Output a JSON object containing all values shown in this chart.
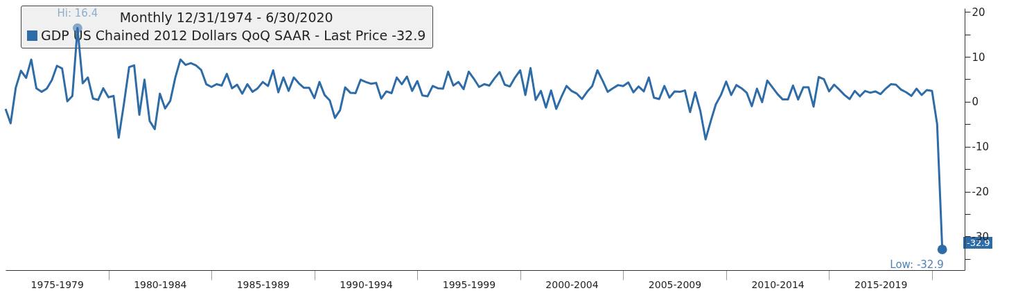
{
  "chart_data": {
    "type": "line",
    "title": "Monthly 12/31/1974 - 6/30/2020",
    "legend": "top left",
    "x": [
      "1974-12-31",
      "1975-03-31",
      "1975-06-30",
      "1975-09-30",
      "1975-12-31",
      "1976-03-31",
      "1976-06-30",
      "1976-09-30",
      "1976-12-31",
      "1977-03-31",
      "1977-06-30",
      "1977-09-30",
      "1977-12-31",
      "1978-03-31",
      "1978-06-30",
      "1978-09-30",
      "1978-12-31",
      "1979-03-31",
      "1979-06-30",
      "1979-09-30",
      "1979-12-31",
      "1980-03-31",
      "1980-06-30",
      "1980-09-30",
      "1980-12-31",
      "1981-03-31",
      "1981-06-30",
      "1981-09-30",
      "1981-12-31",
      "1982-03-31",
      "1982-06-30",
      "1982-09-30",
      "1982-12-31",
      "1983-03-31",
      "1983-06-30",
      "1983-09-30",
      "1983-12-31",
      "1984-03-31",
      "1984-06-30",
      "1984-09-30",
      "1984-12-31",
      "1985-03-31",
      "1985-06-30",
      "1985-09-30",
      "1985-12-31",
      "1986-03-31",
      "1986-06-30",
      "1986-09-30",
      "1986-12-31",
      "1987-03-31",
      "1987-06-30",
      "1987-09-30",
      "1987-12-31",
      "1988-03-31",
      "1988-06-30",
      "1988-09-30",
      "1988-12-31",
      "1989-03-31",
      "1989-06-30",
      "1989-09-30",
      "1989-12-31",
      "1990-03-31",
      "1990-06-30",
      "1990-09-30",
      "1990-12-31",
      "1991-03-31",
      "1991-06-30",
      "1991-09-30",
      "1991-12-31",
      "1992-03-31",
      "1992-06-30",
      "1992-09-30",
      "1992-12-31",
      "1993-03-31",
      "1993-06-30",
      "1993-09-30",
      "1993-12-31",
      "1994-03-31",
      "1994-06-30",
      "1994-09-30",
      "1994-12-31",
      "1995-03-31",
      "1995-06-30",
      "1995-09-30",
      "1995-12-31",
      "1996-03-31",
      "1996-06-30",
      "1996-09-30",
      "1996-12-31",
      "1997-03-31",
      "1997-06-30",
      "1997-09-30",
      "1997-12-31",
      "1998-03-31",
      "1998-06-30",
      "1998-09-30",
      "1998-12-31",
      "1999-03-31",
      "1999-06-30",
      "1999-09-30",
      "1999-12-31",
      "2000-03-31",
      "2000-06-30",
      "2000-09-30",
      "2000-12-31",
      "2001-03-31",
      "2001-06-30",
      "2001-09-30",
      "2001-12-31",
      "2002-03-31",
      "2002-06-30",
      "2002-09-30",
      "2002-12-31",
      "2003-03-31",
      "2003-06-30",
      "2003-09-30",
      "2003-12-31",
      "2004-03-31",
      "2004-06-30",
      "2004-09-30",
      "2004-12-31",
      "2005-03-31",
      "2005-06-30",
      "2005-09-30",
      "2005-12-31",
      "2006-03-31",
      "2006-06-30",
      "2006-09-30",
      "2006-12-31",
      "2007-03-31",
      "2007-06-30",
      "2007-09-30",
      "2007-12-31",
      "2008-03-31",
      "2008-06-30",
      "2008-09-30",
      "2008-12-31",
      "2009-03-31",
      "2009-06-30",
      "2009-09-30",
      "2009-12-31",
      "2010-03-31",
      "2010-06-30",
      "2010-09-30",
      "2010-12-31",
      "2011-03-31",
      "2011-06-30",
      "2011-09-30",
      "2011-12-31",
      "2012-03-31",
      "2012-06-30",
      "2012-09-30",
      "2012-12-31",
      "2013-03-31",
      "2013-06-30",
      "2013-09-30",
      "2013-12-31",
      "2014-03-31",
      "2014-06-30",
      "2014-09-30",
      "2014-12-31",
      "2015-03-31",
      "2015-06-30",
      "2015-09-30",
      "2015-12-31",
      "2016-03-31",
      "2016-06-30",
      "2016-09-30",
      "2016-12-31",
      "2017-03-31",
      "2017-06-30",
      "2017-09-30",
      "2017-12-31",
      "2018-03-31",
      "2018-06-30",
      "2018-09-30",
      "2018-12-31",
      "2019-03-31",
      "2019-06-30",
      "2019-09-30",
      "2019-12-31",
      "2020-03-31",
      "2020-06-30"
    ],
    "series": [
      {
        "name": "GDP US Chained 2012 Dollars QoQ SAAR - Last Price -32.9",
        "color": "#2e6ca8",
        "values": [
          -1.6,
          -4.8,
          3.1,
          6.9,
          5.3,
          9.4,
          3.0,
          2.2,
          2.9,
          4.8,
          8.0,
          7.4,
          0.1,
          1.3,
          16.4,
          4.1,
          5.4,
          0.7,
          0.4,
          3.0,
          1.0,
          1.3,
          -8.0,
          -0.5,
          7.7,
          8.1,
          -2.9,
          4.9,
          -4.3,
          -6.1,
          1.8,
          -1.5,
          0.2,
          5.4,
          9.4,
          8.2,
          8.6,
          8.1,
          7.1,
          3.9,
          3.3,
          3.9,
          3.6,
          6.2,
          3.0,
          3.8,
          1.8,
          3.9,
          2.2,
          3.0,
          4.4,
          3.5,
          7.0,
          2.1,
          5.4,
          2.4,
          5.4,
          4.1,
          3.1,
          3.1,
          0.8,
          4.4,
          1.5,
          0.3,
          -3.6,
          -1.9,
          3.2,
          2.0,
          1.9,
          4.9,
          4.4,
          4.0,
          4.2,
          0.7,
          2.3,
          1.9,
          5.4,
          3.9,
          5.6,
          2.4,
          4.6,
          1.4,
          1.2,
          3.5,
          3.0,
          2.9,
          6.7,
          3.6,
          4.4,
          2.8,
          6.7,
          5.1,
          3.3,
          3.9,
          3.6,
          5.2,
          6.6,
          3.8,
          3.4,
          5.4,
          7.0,
          1.5,
          7.5,
          0.4,
          2.4,
          -1.3,
          2.5,
          -1.6,
          1.1,
          3.5,
          2.4,
          1.8,
          0.6,
          2.2,
          3.5,
          7.0,
          4.7,
          2.2,
          3.0,
          3.7,
          3.5,
          4.3,
          2.1,
          3.4,
          2.3,
          5.4,
          0.9,
          0.6,
          3.5,
          0.9,
          2.3,
          2.2,
          2.5,
          -2.3,
          2.1,
          -2.1,
          -8.4,
          -4.4,
          -0.6,
          1.5,
          4.5,
          1.5,
          3.7,
          3.0,
          2.0,
          -1.0,
          2.9,
          -0.1,
          4.7,
          3.2,
          1.7,
          0.5,
          0.5,
          3.6,
          0.5,
          3.2,
          3.2,
          -1.1,
          5.5,
          5.0,
          2.3,
          3.8,
          2.7,
          1.5,
          0.6,
          2.4,
          1.2,
          2.4,
          2.0,
          2.3,
          1.7,
          2.9,
          3.9,
          3.8,
          2.7,
          2.1,
          1.3,
          2.9,
          1.5,
          2.6,
          2.4,
          -5.0,
          -32.9
        ]
      }
    ],
    "xlim": [
      "1974-12-31",
      "2021-08-01"
    ],
    "xticks": [
      {
        "value": "1977-07-01",
        "label": "1975-1979"
      },
      {
        "value": "1980-01-01",
        "label": null
      },
      {
        "value": "1982-07-01",
        "label": "1980-1984"
      },
      {
        "value": "1985-01-01",
        "label": null
      },
      {
        "value": "1987-07-01",
        "label": "1985-1989"
      },
      {
        "value": "1990-01-01",
        "label": null
      },
      {
        "value": "1992-07-01",
        "label": "1990-1994"
      },
      {
        "value": "1995-01-01",
        "label": null
      },
      {
        "value": "1997-07-01",
        "label": "1995-1999"
      },
      {
        "value": "2000-01-01",
        "label": null
      },
      {
        "value": "2002-07-01",
        "label": "2000-2004"
      },
      {
        "value": "2005-01-01",
        "label": null
      },
      {
        "value": "2007-07-01",
        "label": "2005-2009"
      },
      {
        "value": "2010-01-01",
        "label": null
      },
      {
        "value": "2012-07-01",
        "label": "2010-2014"
      },
      {
        "value": "2015-01-01",
        "label": null
      },
      {
        "value": "2017-07-01",
        "label": "2015-2019"
      },
      {
        "value": "2020-01-01",
        "label": null
      }
    ],
    "ylim": [
      -37.5,
      20.8
    ],
    "yticks": [
      {
        "value": -35,
        "label": null
      },
      -30,
      {
        "value": -25,
        "label": null
      },
      -20,
      {
        "value": -15,
        "label": null
      },
      -10,
      {
        "value": -5,
        "label": null
      },
      0,
      {
        "value": 5,
        "label": null
      },
      10,
      {
        "value": 15,
        "label": null
      },
      20
    ],
    "annotations": [
      {
        "text": "Hi: 16.4",
        "x": "1978-06-30",
        "y": 16.4
      },
      {
        "text": "Low: -32.9",
        "x": "2020-06-30",
        "y": -32.9
      },
      "-32.9"
    ]
  }
}
